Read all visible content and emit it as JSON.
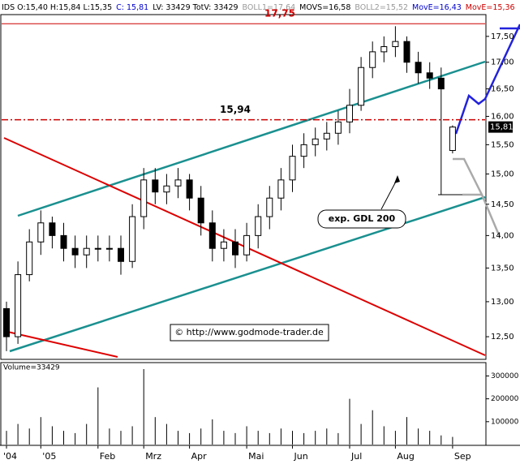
{
  "chart_data": {
    "type": "candlestick",
    "header": [
      {
        "text": "IDS O:15,40 H:15,84 L:15,35",
        "color": "#000000"
      },
      {
        "text": "C: 15,81",
        "color": "#0000cc"
      },
      {
        "text": "LV: 33429 TotV: 33429",
        "color": "#000000"
      },
      {
        "text": "BOLL1=17,64",
        "color": "#999999"
      },
      {
        "text": "MOVS=16,58",
        "color": "#000000"
      },
      {
        "text": "BOLL2=15,52",
        "color": "#999999"
      },
      {
        "text": "MovE=16,43",
        "color": "#0000cc"
      },
      {
        "text": "MovE=15,36",
        "color": "#cc0000"
      }
    ],
    "categories": [
      "'04",
      null,
      null,
      "'05",
      null,
      null,
      null,
      null,
      "Feb",
      null,
      null,
      null,
      "Mrz",
      null,
      null,
      null,
      "Apr",
      null,
      null,
      null,
      null,
      "Mai",
      null,
      null,
      null,
      "Jun",
      null,
      null,
      null,
      null,
      "Jul",
      null,
      null,
      null,
      "Aug",
      null,
      null,
      null,
      null,
      "Sep"
    ],
    "open": [
      12.9,
      12.5,
      13.4,
      13.9,
      14.2,
      14.0,
      13.8,
      13.7,
      13.8,
      13.8,
      13.8,
      13.6,
      14.3,
      14.9,
      14.7,
      14.8,
      14.9,
      14.6,
      14.2,
      13.8,
      13.9,
      13.7,
      14.0,
      14.3,
      14.6,
      14.9,
      15.3,
      15.5,
      15.6,
      15.7,
      15.9,
      16.2,
      16.9,
      17.2,
      17.3,
      17.4,
      17.0,
      16.8,
      16.7,
      15.4
    ],
    "high": [
      13.0,
      13.6,
      14.1,
      14.4,
      14.3,
      14.2,
      14.0,
      14.0,
      14.0,
      14.0,
      14.0,
      14.5,
      15.1,
      15.1,
      15.0,
      15.1,
      15.0,
      14.8,
      14.4,
      14.1,
      14.1,
      14.2,
      14.5,
      14.8,
      15.1,
      15.5,
      15.7,
      15.8,
      15.9,
      16.1,
      16.5,
      17.1,
      17.4,
      17.5,
      17.7,
      17.5,
      17.2,
      17.0,
      16.9,
      15.84
    ],
    "low": [
      12.3,
      12.4,
      13.3,
      13.7,
      13.8,
      13.6,
      13.5,
      13.5,
      13.6,
      13.6,
      13.4,
      13.5,
      14.1,
      14.5,
      14.5,
      14.6,
      14.4,
      14.0,
      13.6,
      13.6,
      13.5,
      13.6,
      13.8,
      14.1,
      14.4,
      14.7,
      15.1,
      15.3,
      15.4,
      15.5,
      15.7,
      16.1,
      16.7,
      17.0,
      17.1,
      16.8,
      16.6,
      16.5,
      14.65,
      15.35
    ],
    "close": [
      12.5,
      13.4,
      13.9,
      14.2,
      14.0,
      13.8,
      13.7,
      13.8,
      13.8,
      13.8,
      13.6,
      14.3,
      14.9,
      14.7,
      14.8,
      14.9,
      14.6,
      14.2,
      13.8,
      13.9,
      13.7,
      14.0,
      14.3,
      14.6,
      14.9,
      15.3,
      15.5,
      15.6,
      15.7,
      15.9,
      16.2,
      16.9,
      17.2,
      17.3,
      17.4,
      17.0,
      16.8,
      16.7,
      16.5,
      15.81
    ],
    "last_value_label": "15,81",
    "log_scale": true,
    "ylim": [
      12.22,
      17.77
    ],
    "yticks": [
      {
        "value": 12.5,
        "label": "12,50"
      },
      {
        "value": 13.0,
        "label": "13,00"
      },
      {
        "value": 13.5,
        "label": "13,50"
      },
      {
        "value": 14.0,
        "label": "14,00"
      },
      {
        "value": 14.5,
        "label": "14,50"
      },
      {
        "value": 15.0,
        "label": "15,00"
      },
      {
        "value": 15.5,
        "label": "15,50"
      },
      {
        "value": 16.0,
        "label": "16,00"
      },
      {
        "value": 16.5,
        "label": "16,50"
      },
      {
        "value": 17.0,
        "label": "17,00"
      },
      {
        "value": 17.5,
        "label": "17,50"
      }
    ],
    "levels": [
      {
        "value": 17.75,
        "label": "17,75",
        "color": "#cc0000"
      },
      {
        "value": 15.94,
        "label": "15,94",
        "color": "#cc0000"
      }
    ],
    "annotations": [
      "exp. GDL 200",
      "© http://www.godmode-trader.de"
    ],
    "volume": {
      "title": "Volume=33429",
      "values": [
        60000,
        90000,
        70000,
        120000,
        80000,
        60000,
        50000,
        90000,
        250000,
        70000,
        60000,
        80000,
        330000,
        120000,
        90000,
        60000,
        50000,
        70000,
        110000,
        60000,
        50000,
        80000,
        60000,
        50000,
        70000,
        60000,
        50000,
        60000,
        70000,
        50000,
        200000,
        90000,
        150000,
        80000,
        60000,
        120000,
        70000,
        60000,
        40000,
        33429
      ],
      "ylim": [
        0,
        330000
      ],
      "yticks": [
        100000,
        200000,
        300000
      ]
    }
  }
}
